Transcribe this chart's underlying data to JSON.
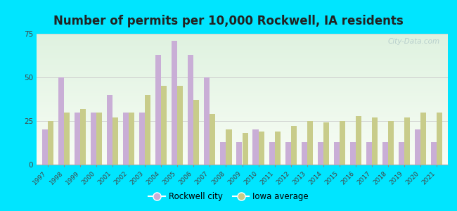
{
  "title": "Number of permits per 10,000 Rockwell, IA residents",
  "years": [
    1997,
    1998,
    1999,
    2000,
    2001,
    2002,
    2003,
    2004,
    2005,
    2006,
    2007,
    2008,
    2009,
    2010,
    2011,
    2012,
    2013,
    2014,
    2015,
    2016,
    2017,
    2018,
    2019,
    2020,
    2021
  ],
  "rockwell": [
    20,
    50,
    30,
    30,
    40,
    30,
    30,
    63,
    71,
    63,
    50,
    13,
    13,
    20,
    13,
    13,
    13,
    13,
    13,
    13,
    13,
    13,
    13,
    20,
    13
  ],
  "iowa": [
    25,
    30,
    32,
    30,
    27,
    30,
    40,
    45,
    45,
    37,
    29,
    20,
    18,
    19,
    19,
    22,
    25,
    24,
    25,
    28,
    27,
    25,
    27,
    30,
    30
  ],
  "rockwell_color": "#c9aed6",
  "iowa_color": "#c8cc8a",
  "ylim": [
    0,
    75
  ],
  "yticks": [
    0,
    25,
    50,
    75
  ],
  "bg_outer": "#00e5ff",
  "title_fontsize": 12,
  "legend_rockwell": "Rockwell city",
  "legend_iowa": "Iowa average",
  "watermark": "City-Data.com"
}
